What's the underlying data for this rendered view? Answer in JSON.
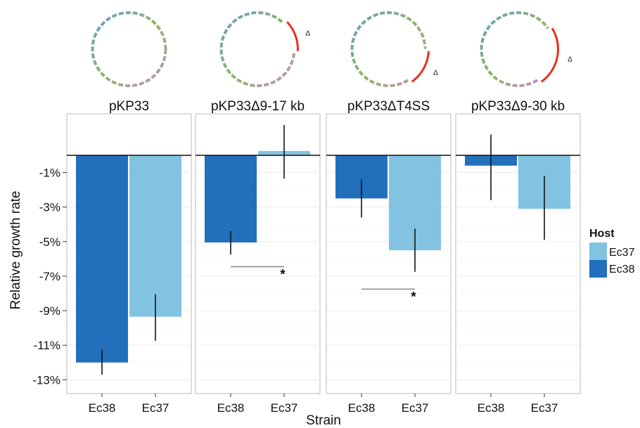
{
  "chart_data": {
    "type": "bar",
    "ylabel": "Relative growth rate",
    "xlabel": "Strain",
    "ylim": [
      -13.8,
      2.4
    ],
    "yticks": [
      -1,
      -3,
      -5,
      -7,
      -9,
      -11,
      -13
    ],
    "ytick_labels": [
      "-1%",
      "-3%",
      "-5%",
      "-7%",
      "-9%",
      "-11%",
      "-13%"
    ],
    "grid": true,
    "legend": {
      "title": "Host",
      "position": "right",
      "entries": [
        {
          "label": "Ec37",
          "color": "#82c3e2"
        },
        {
          "label": "Ec38",
          "color": "#2270bc"
        }
      ]
    },
    "panels": [
      {
        "title": "pKP33",
        "deletion_symbol": "",
        "categories": [
          "Ec38",
          "Ec37"
        ],
        "values": [
          -12.0,
          -9.35
        ],
        "errors": [
          [
            -12.7,
            -11.25
          ],
          [
            -10.75,
            -8.05
          ]
        ],
        "significance": null
      },
      {
        "title": "pKP33Δ9-17 kb",
        "deletion_symbol": "Δ",
        "categories": [
          "Ec38",
          "Ec37"
        ],
        "values": [
          -5.05,
          0.25
        ],
        "errors": [
          [
            -5.75,
            -4.4
          ],
          [
            -1.35,
            1.75
          ]
        ],
        "significance": {
          "from": 0,
          "to": 1,
          "y": -6.45,
          "label": "*"
        }
      },
      {
        "title": "pKP33ΔT4SS",
        "deletion_symbol": "Δ",
        "categories": [
          "Ec38",
          "Ec37"
        ],
        "values": [
          -2.5,
          -5.5
        ],
        "errors": [
          [
            -3.6,
            -1.4
          ],
          [
            -6.75,
            -4.25
          ]
        ],
        "significance": {
          "from": 0,
          "to": 1,
          "y": -7.75,
          "label": "*"
        }
      },
      {
        "title": "pKP33Δ9-30 kb",
        "deletion_symbol": "Δ",
        "categories": [
          "Ec38",
          "Ec37"
        ],
        "values": [
          -0.6,
          -3.1
        ],
        "errors": [
          [
            -2.6,
            1.2
          ],
          [
            -4.9,
            -1.2
          ]
        ],
        "significance": null
      }
    ],
    "series_colors": {
      "Ec38": "#2270bc",
      "Ec37": "#82c3e2"
    }
  }
}
